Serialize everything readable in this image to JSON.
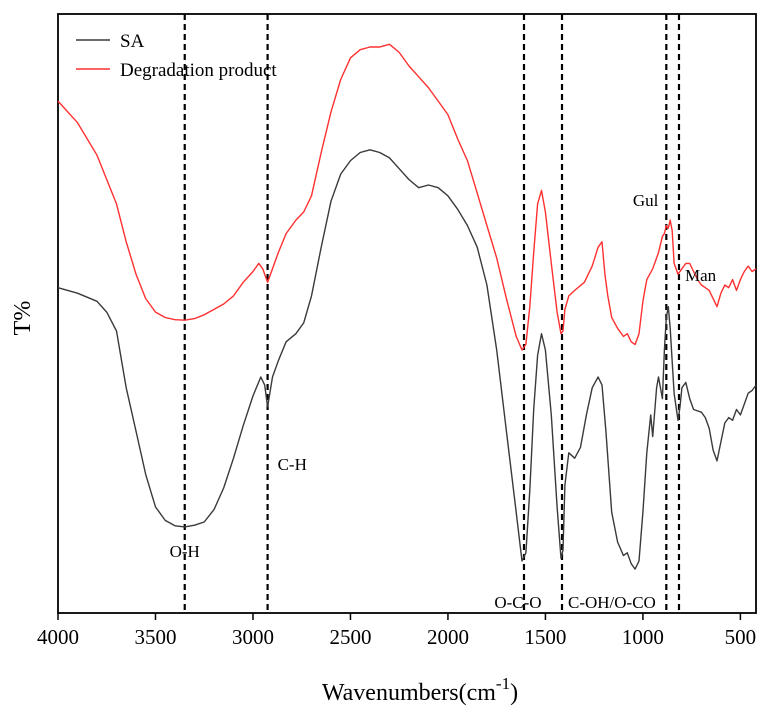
{
  "chart_data": {
    "type": "line",
    "title": "",
    "xlabel": "Wavenumbers(cm",
    "xlabel_sup": "-1",
    "xlabel_close": ")",
    "ylabel": "T%",
    "xlim": [
      4000,
      420
    ],
    "ylim": [
      0,
      100
    ],
    "x_ticks": [
      4000,
      3500,
      3000,
      2500,
      2000,
      1500,
      1000,
      500
    ],
    "legend_position": "top-left",
    "series": [
      {
        "name": "SA",
        "color": "#3a3a3a",
        "points": [
          [
            4000,
            55.5
          ],
          [
            3900,
            54.5
          ],
          [
            3800,
            53
          ],
          [
            3750,
            51
          ],
          [
            3700,
            47.5
          ],
          [
            3650,
            37
          ],
          [
            3600,
            29
          ],
          [
            3550,
            21
          ],
          [
            3500,
            15
          ],
          [
            3450,
            12.5
          ],
          [
            3400,
            11.5
          ],
          [
            3350,
            11.3
          ],
          [
            3300,
            11.6
          ],
          [
            3250,
            12.2
          ],
          [
            3200,
            14.5
          ],
          [
            3150,
            18.5
          ],
          [
            3100,
            24
          ],
          [
            3050,
            30
          ],
          [
            3000,
            35.5
          ],
          [
            2960,
            39
          ],
          [
            2940,
            37.5
          ],
          [
            2925,
            33.5
          ],
          [
            2900,
            39
          ],
          [
            2870,
            42
          ],
          [
            2830,
            45.5
          ],
          [
            2780,
            47
          ],
          [
            2740,
            49
          ],
          [
            2700,
            54
          ],
          [
            2650,
            63
          ],
          [
            2600,
            71.5
          ],
          [
            2550,
            76.5
          ],
          [
            2500,
            79
          ],
          [
            2450,
            80.5
          ],
          [
            2400,
            81
          ],
          [
            2350,
            80.5
          ],
          [
            2300,
            79.5
          ],
          [
            2250,
            77.5
          ],
          [
            2200,
            75.5
          ],
          [
            2150,
            74
          ],
          [
            2100,
            74.5
          ],
          [
            2050,
            74
          ],
          [
            2000,
            72.5
          ],
          [
            1950,
            70
          ],
          [
            1900,
            67
          ],
          [
            1850,
            63
          ],
          [
            1800,
            56
          ],
          [
            1750,
            44
          ],
          [
            1700,
            29
          ],
          [
            1650,
            14
          ],
          [
            1620,
            5
          ],
          [
            1600,
            6.5
          ],
          [
            1580,
            18
          ],
          [
            1560,
            33
          ],
          [
            1540,
            43
          ],
          [
            1520,
            47
          ],
          [
            1500,
            44
          ],
          [
            1470,
            32
          ],
          [
            1440,
            15
          ],
          [
            1420,
            5.5
          ],
          [
            1410,
            7
          ],
          [
            1400,
            19
          ],
          [
            1380,
            25
          ],
          [
            1350,
            24
          ],
          [
            1320,
            26
          ],
          [
            1290,
            32
          ],
          [
            1260,
            37
          ],
          [
            1230,
            39
          ],
          [
            1210,
            37.5
          ],
          [
            1190,
            29
          ],
          [
            1160,
            14
          ],
          [
            1130,
            8.5
          ],
          [
            1100,
            6
          ],
          [
            1080,
            6.5
          ],
          [
            1060,
            4.5
          ],
          [
            1040,
            3.5
          ],
          [
            1020,
            5
          ],
          [
            1000,
            14
          ],
          [
            980,
            25
          ],
          [
            960,
            32
          ],
          [
            950,
            28
          ],
          [
            930,
            37
          ],
          [
            920,
            39
          ],
          [
            900,
            35
          ],
          [
            890,
            44
          ],
          [
            880,
            50
          ],
          [
            870,
            52
          ],
          [
            860,
            48
          ],
          [
            840,
            36
          ],
          [
            820,
            31
          ],
          [
            810,
            33.5
          ],
          [
            800,
            37
          ],
          [
            780,
            38
          ],
          [
            760,
            35
          ],
          [
            740,
            33
          ],
          [
            700,
            32.5
          ],
          [
            680,
            31.5
          ],
          [
            660,
            29.5
          ],
          [
            640,
            25.5
          ],
          [
            620,
            23.5
          ],
          [
            600,
            27
          ],
          [
            580,
            30.5
          ],
          [
            560,
            31.5
          ],
          [
            540,
            31
          ],
          [
            520,
            33
          ],
          [
            500,
            32
          ],
          [
            480,
            34
          ],
          [
            460,
            36
          ],
          [
            440,
            36.5
          ],
          [
            420,
            37.5
          ]
        ]
      },
      {
        "name": "Degradation product",
        "color": "#ff3030",
        "points": [
          [
            4000,
            90
          ],
          [
            3900,
            86
          ],
          [
            3800,
            80
          ],
          [
            3700,
            71
          ],
          [
            3650,
            64
          ],
          [
            3600,
            58
          ],
          [
            3550,
            53.5
          ],
          [
            3500,
            51
          ],
          [
            3450,
            50
          ],
          [
            3400,
            49.6
          ],
          [
            3350,
            49.5
          ],
          [
            3300,
            49.8
          ],
          [
            3250,
            50.5
          ],
          [
            3200,
            51.5
          ],
          [
            3150,
            52.5
          ],
          [
            3100,
            54
          ],
          [
            3050,
            56.5
          ],
          [
            3000,
            58.5
          ],
          [
            2970,
            60
          ],
          [
            2950,
            59
          ],
          [
            2925,
            56.5
          ],
          [
            2900,
            59
          ],
          [
            2870,
            62
          ],
          [
            2830,
            65.5
          ],
          [
            2780,
            68
          ],
          [
            2740,
            69.5
          ],
          [
            2700,
            72.5
          ],
          [
            2650,
            80.5
          ],
          [
            2600,
            88
          ],
          [
            2550,
            94
          ],
          [
            2500,
            98
          ],
          [
            2450,
            99.5
          ],
          [
            2400,
            100
          ],
          [
            2350,
            100
          ],
          [
            2300,
            100.5
          ],
          [
            2250,
            99
          ],
          [
            2200,
            96.5
          ],
          [
            2150,
            94.5
          ],
          [
            2100,
            92.5
          ],
          [
            2050,
            90
          ],
          [
            2000,
            87.5
          ],
          [
            1950,
            83
          ],
          [
            1900,
            79
          ],
          [
            1850,
            73
          ],
          [
            1800,
            67
          ],
          [
            1750,
            61
          ],
          [
            1700,
            53.5
          ],
          [
            1650,
            46.5
          ],
          [
            1620,
            44
          ],
          [
            1600,
            45
          ],
          [
            1580,
            52
          ],
          [
            1560,
            62
          ],
          [
            1540,
            71
          ],
          [
            1520,
            73.5
          ],
          [
            1500,
            69.5
          ],
          [
            1470,
            60
          ],
          [
            1440,
            51
          ],
          [
            1420,
            47
          ],
          [
            1410,
            47.5
          ],
          [
            1400,
            51.5
          ],
          [
            1380,
            54
          ],
          [
            1350,
            55
          ],
          [
            1300,
            56.5
          ],
          [
            1260,
            59.5
          ],
          [
            1230,
            63
          ],
          [
            1210,
            64
          ],
          [
            1195,
            58
          ],
          [
            1180,
            54
          ],
          [
            1160,
            50
          ],
          [
            1130,
            48
          ],
          [
            1100,
            46.5
          ],
          [
            1080,
            47
          ],
          [
            1060,
            45.5
          ],
          [
            1040,
            45
          ],
          [
            1020,
            47
          ],
          [
            1000,
            53
          ],
          [
            980,
            57
          ],
          [
            950,
            59
          ],
          [
            920,
            62
          ],
          [
            900,
            65
          ],
          [
            890,
            65.5
          ],
          [
            880,
            67
          ],
          [
            870,
            66.5
          ],
          [
            860,
            68
          ],
          [
            850,
            66
          ],
          [
            840,
            60
          ],
          [
            820,
            58
          ],
          [
            800,
            59
          ],
          [
            780,
            60
          ],
          [
            760,
            60
          ],
          [
            740,
            58.5
          ],
          [
            720,
            57
          ],
          [
            700,
            56
          ],
          [
            680,
            55.5
          ],
          [
            660,
            55
          ],
          [
            640,
            53.5
          ],
          [
            620,
            52
          ],
          [
            600,
            54.5
          ],
          [
            580,
            56
          ],
          [
            560,
            55.5
          ],
          [
            540,
            57
          ],
          [
            520,
            55
          ],
          [
            500,
            57
          ],
          [
            480,
            58.5
          ],
          [
            460,
            59.5
          ],
          [
            440,
            58.5
          ],
          [
            420,
            59
          ]
        ]
      }
    ],
    "reference_lines": [
      {
        "x": 3350,
        "label": "O-H"
      },
      {
        "x": 2925,
        "label": "C-H"
      },
      {
        "x": 1610,
        "label": "O-C-O"
      },
      {
        "x": 1415,
        "label": "C-OH/O-CO"
      },
      {
        "x": 880,
        "label": "Gul"
      },
      {
        "x": 815,
        "label": "Man"
      }
    ]
  }
}
